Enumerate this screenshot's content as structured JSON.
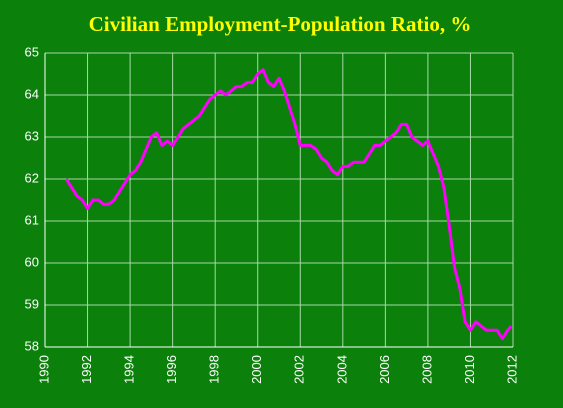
{
  "chart_data": {
    "type": "line",
    "title": "Civilian Employment-Population Ratio, %",
    "x": [
      1991,
      1991.25,
      1991.5,
      1991.75,
      1992,
      1992.25,
      1992.5,
      1992.75,
      1993,
      1993.25,
      1993.5,
      1993.75,
      1994,
      1994.25,
      1994.5,
      1994.75,
      1995,
      1995.25,
      1995.5,
      1995.75,
      1996,
      1996.25,
      1996.5,
      1996.75,
      1997,
      1997.25,
      1997.5,
      1997.75,
      1998,
      1998.25,
      1998.5,
      1998.75,
      1999,
      1999.25,
      1999.5,
      1999.75,
      2000,
      2000.25,
      2000.5,
      2000.75,
      2001,
      2001.25,
      2001.5,
      2001.75,
      2002,
      2002.25,
      2002.5,
      2002.75,
      2003,
      2003.25,
      2003.5,
      2003.75,
      2004,
      2004.25,
      2004.5,
      2004.75,
      2005,
      2005.25,
      2005.5,
      2005.75,
      2006,
      2006.25,
      2006.5,
      2006.75,
      2007,
      2007.25,
      2007.5,
      2007.75,
      2008,
      2008.25,
      2008.5,
      2008.75,
      2009,
      2009.25,
      2009.5,
      2009.75,
      2010,
      2010.25,
      2010.5,
      2010.75,
      2011,
      2011.25,
      2011.5,
      2011.75,
      2011.92
    ],
    "series": [
      {
        "color": "#ff00ff",
        "values": [
          62.0,
          61.8,
          61.6,
          61.5,
          61.3,
          61.5,
          61.5,
          61.4,
          61.4,
          61.5,
          61.7,
          61.9,
          62.1,
          62.2,
          62.4,
          62.7,
          63.0,
          63.1,
          62.8,
          62.9,
          62.8,
          63.0,
          63.2,
          63.3,
          63.4,
          63.5,
          63.7,
          63.9,
          64.0,
          64.1,
          64.0,
          64.1,
          64.2,
          64.2,
          64.3,
          64.3,
          64.5,
          64.6,
          64.3,
          64.2,
          64.4,
          64.1,
          63.7,
          63.3,
          62.8,
          62.8,
          62.8,
          62.7,
          62.5,
          62.4,
          62.2,
          62.1,
          62.3,
          62.3,
          62.4,
          62.4,
          62.4,
          62.6,
          62.8,
          62.8,
          62.9,
          63.0,
          63.1,
          63.3,
          63.3,
          63.0,
          62.9,
          62.8,
          62.9,
          62.6,
          62.3,
          61.8,
          60.9,
          59.9,
          59.4,
          58.6,
          58.4,
          58.6,
          58.5,
          58.4,
          58.4,
          58.4,
          58.2,
          58.4,
          58.5
        ]
      }
    ],
    "xlim": [
      1990,
      2012
    ],
    "xticks": [
      1990,
      1992,
      1994,
      1996,
      1998,
      2000,
      2002,
      2004,
      2006,
      2008,
      2010,
      2012
    ],
    "ylim": [
      58,
      65
    ],
    "yticks": [
      58,
      59,
      60,
      61,
      62,
      63,
      64,
      65
    ],
    "grid": true
  }
}
